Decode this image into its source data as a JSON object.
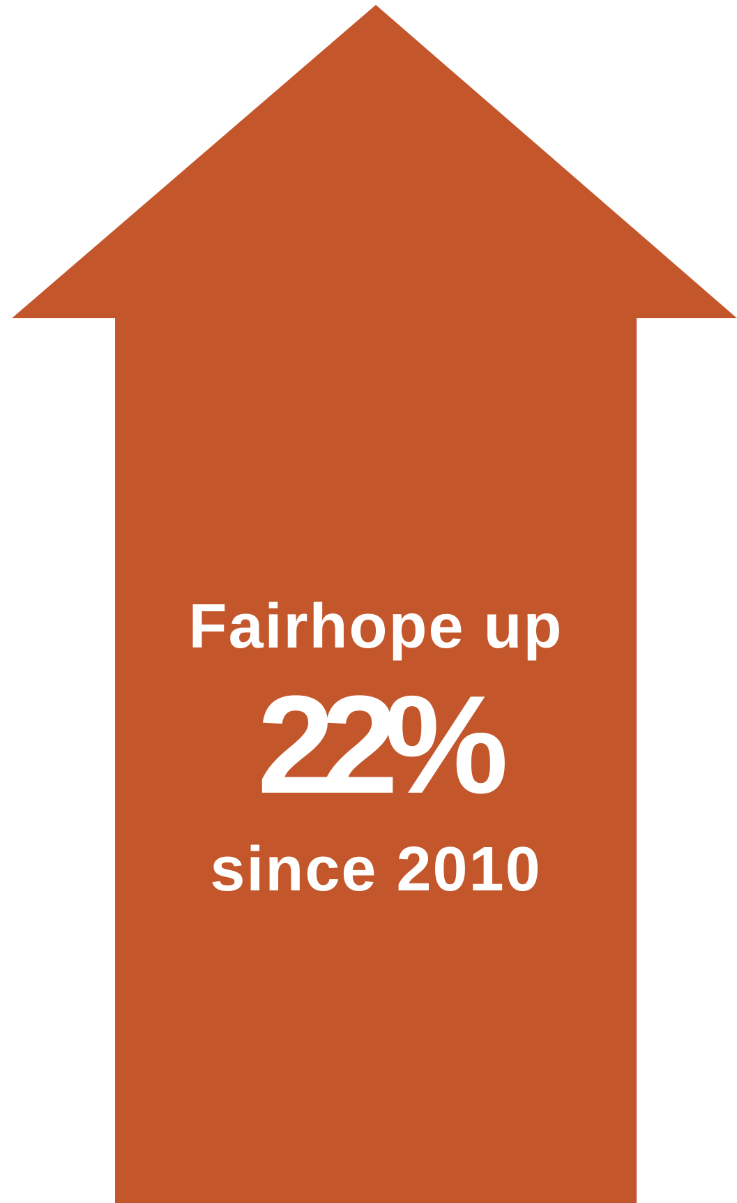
{
  "colors": {
    "background": "#ffffff",
    "arrow": "#c4562b",
    "text": "#ffffff"
  },
  "arrow": {
    "direction": "up",
    "icon": "up-arrow-icon"
  },
  "text": {
    "headline": "Fairhope up",
    "value": "22%",
    "subline": "since 2010"
  }
}
